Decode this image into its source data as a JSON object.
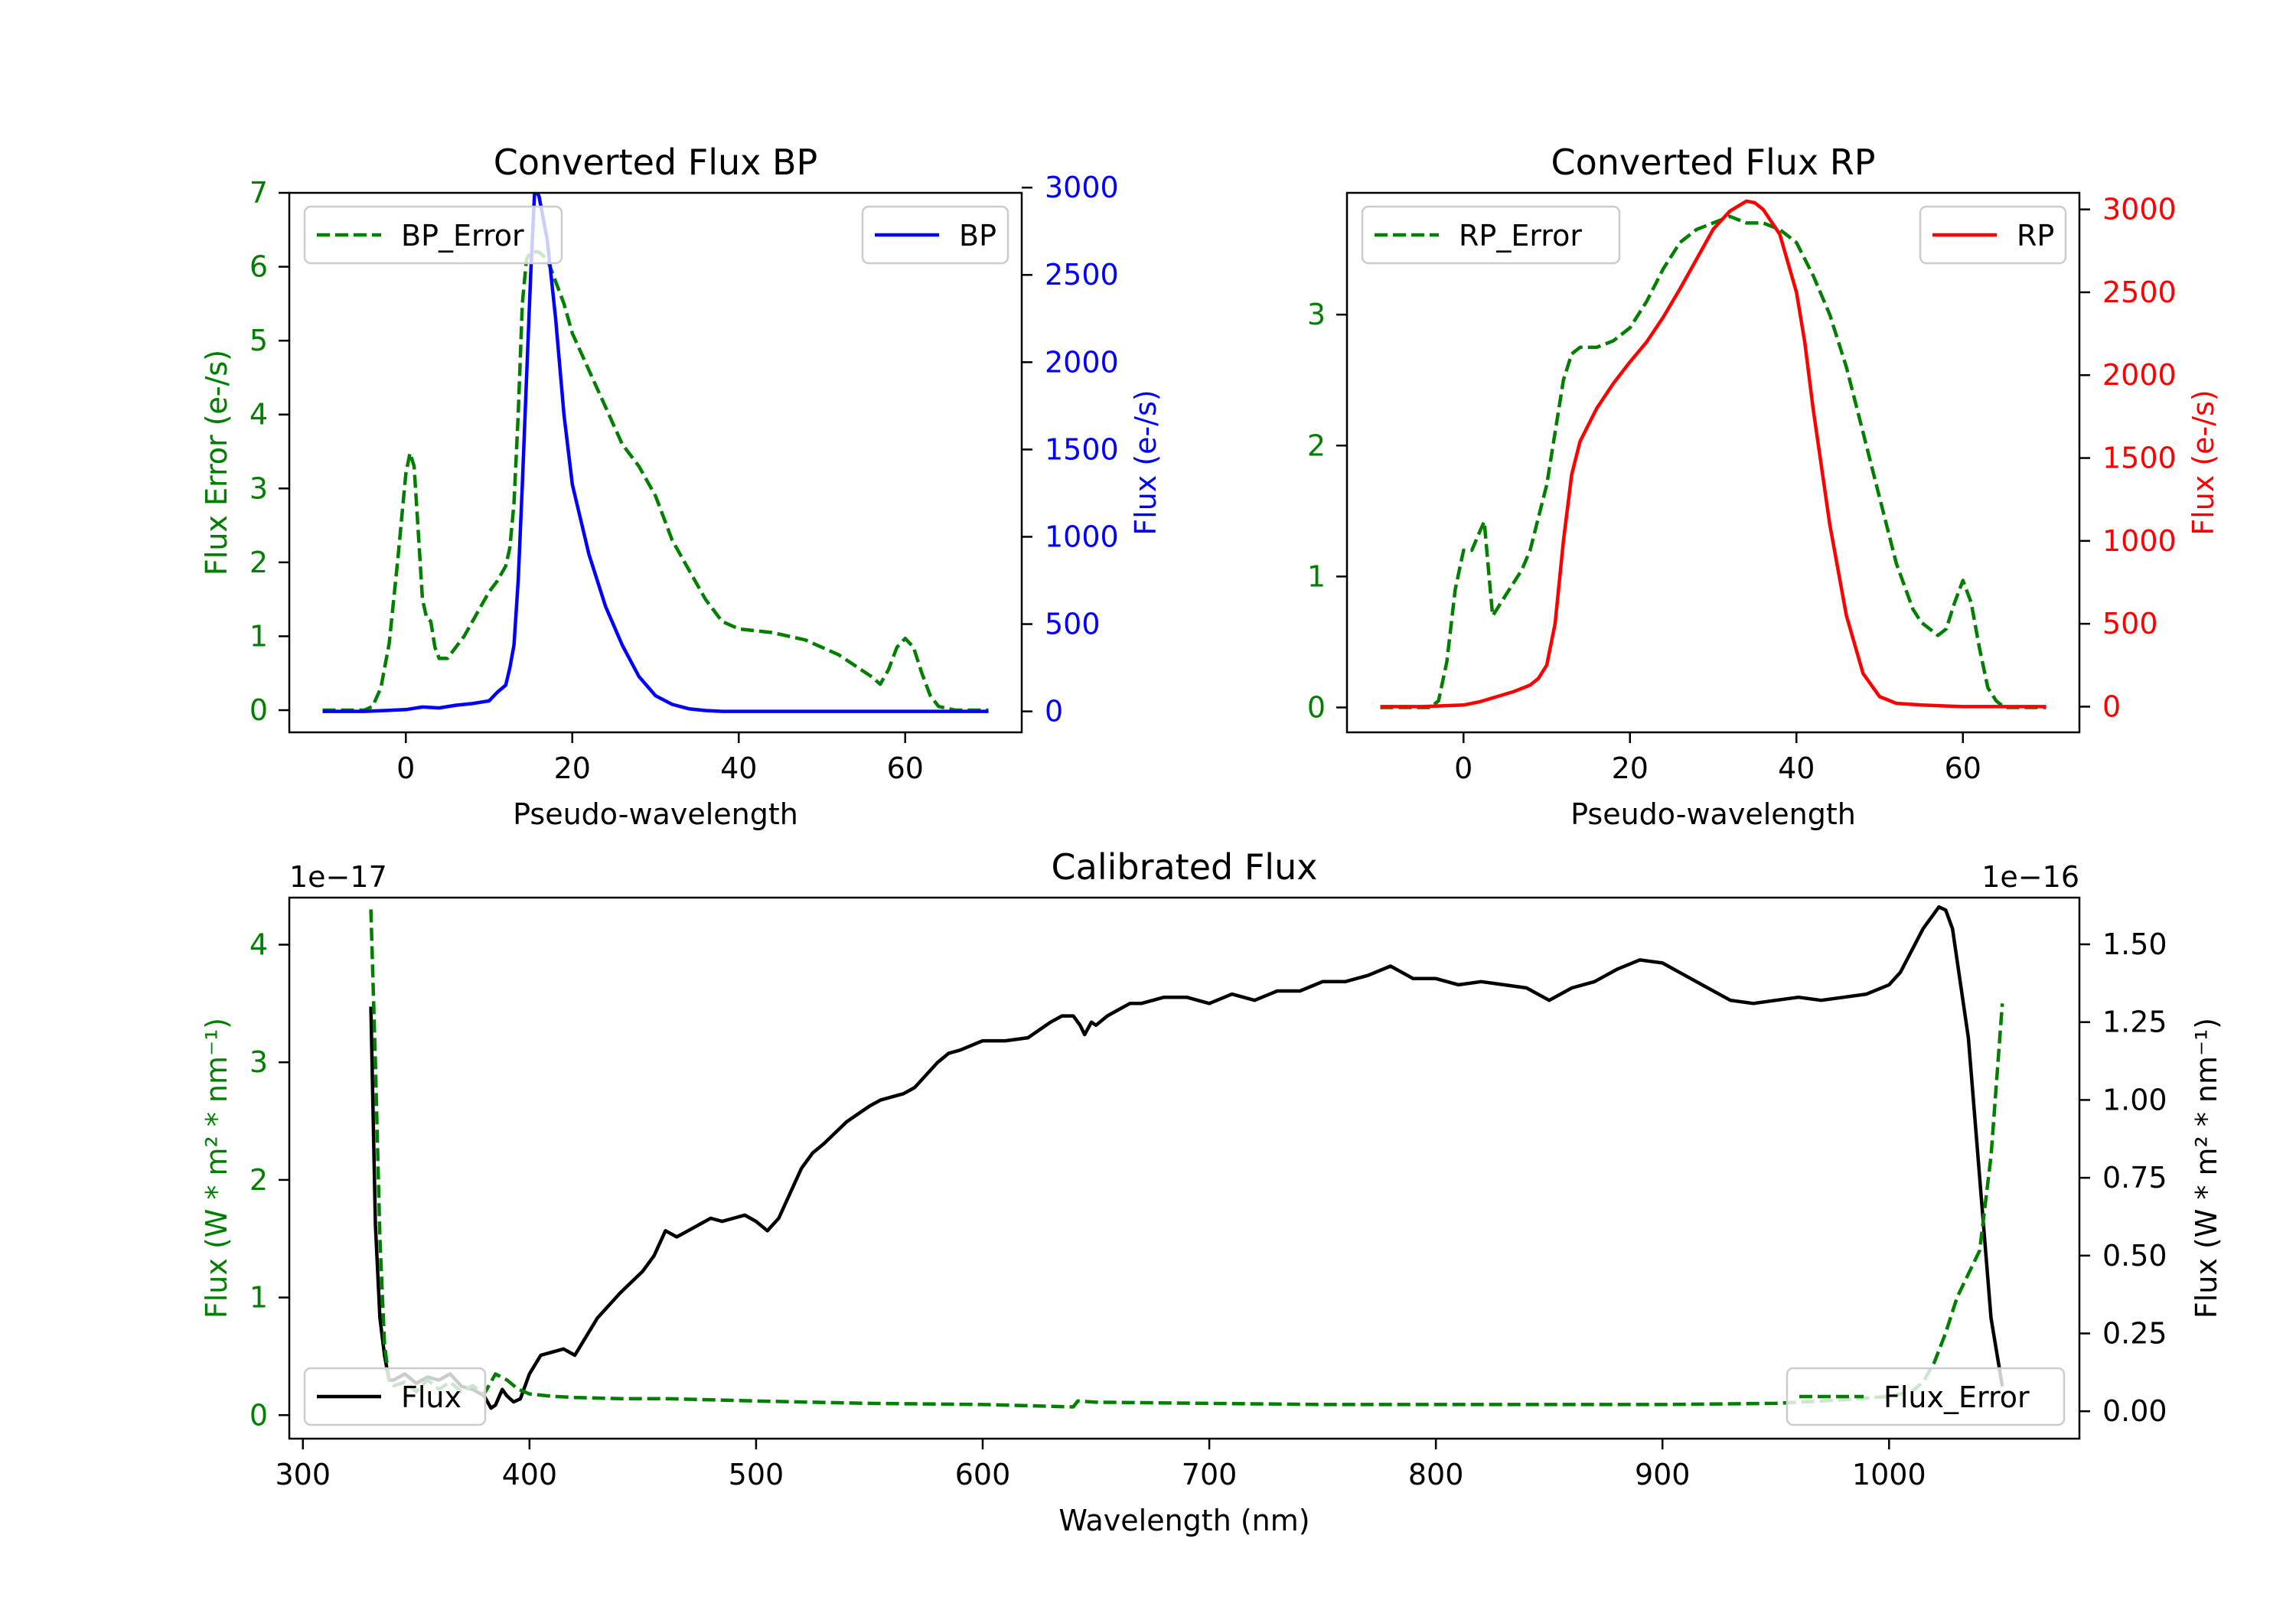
{
  "figure": {
    "background": "#ffffff",
    "colors": {
      "green": "#007f00",
      "blue": "#0000ff",
      "red": "#ff0000",
      "black": "#000000"
    }
  },
  "chart_data": [
    {
      "id": "bp",
      "type": "line",
      "title": "Converted Flux BP",
      "xlabel": "Pseudo-wavelength",
      "ylabel_left": "Flux Error (e-/s)",
      "ylabel_right": "Flux (e-/s)",
      "xlim": [
        -14,
        74
      ],
      "ylim_left": [
        -0.3,
        7
      ],
      "ylim_right": [
        -120,
        2970
      ],
      "xticks": [
        0,
        20,
        40,
        60
      ],
      "yticks_left": [
        0,
        1,
        2,
        3,
        4,
        5,
        6,
        7
      ],
      "yticks_right": [
        0,
        500,
        1000,
        1500,
        2000,
        2500,
        3000
      ],
      "legend_left": "BP_Error",
      "legend_right": "BP",
      "series": [
        {
          "name": "BP_Error",
          "axis": "left",
          "style": "dashed",
          "color": "#007f00",
          "x": [
            -10,
            -5,
            -4,
            -3,
            -2,
            -1,
            0,
            0.5,
            1,
            1.5,
            2,
            2.5,
            3,
            3.5,
            4,
            5,
            6,
            7,
            8,
            9,
            10,
            11,
            12,
            12.5,
            13,
            13.5,
            14,
            14.5,
            15,
            16,
            17,
            18,
            19,
            20,
            22,
            24,
            26,
            28,
            30,
            32,
            34,
            36,
            38,
            40,
            44,
            48,
            52,
            56,
            57,
            58,
            59,
            60,
            61,
            62,
            63,
            64,
            66,
            70
          ],
          "y": [
            0,
            0,
            0.05,
            0.3,
            0.9,
            2.0,
            3.2,
            3.48,
            3.3,
            2.4,
            1.5,
            1.25,
            1.2,
            0.85,
            0.7,
            0.7,
            0.85,
            1.0,
            1.2,
            1.4,
            1.6,
            1.75,
            1.95,
            2.2,
            2.8,
            4.0,
            5.5,
            6.1,
            6.2,
            6.2,
            6.1,
            5.8,
            5.5,
            5.1,
            4.6,
            4.1,
            3.6,
            3.3,
            2.9,
            2.3,
            1.9,
            1.5,
            1.2,
            1.1,
            1.05,
            0.95,
            0.75,
            0.45,
            0.35,
            0.55,
            0.85,
            0.97,
            0.85,
            0.5,
            0.2,
            0.05,
            0,
            0
          ]
        },
        {
          "name": "BP",
          "axis": "right",
          "style": "solid",
          "color": "#0000ff",
          "x": [
            -10,
            -5,
            0,
            2,
            4,
            6,
            8,
            10,
            11,
            12,
            12.5,
            13,
            13.5,
            14,
            14.5,
            15,
            15.5,
            16,
            17,
            18,
            19,
            20,
            22,
            24,
            26,
            28,
            30,
            32,
            34,
            36,
            38,
            40,
            44,
            50,
            55,
            60,
            65,
            70
          ],
          "y": [
            0,
            0,
            10,
            25,
            20,
            35,
            45,
            60,
            110,
            150,
            250,
            380,
            750,
            1300,
            1900,
            2500,
            3000,
            2950,
            2700,
            2250,
            1700,
            1300,
            900,
            600,
            380,
            200,
            90,
            40,
            15,
            5,
            0,
            0,
            0,
            0,
            0,
            0,
            0,
            0
          ]
        }
      ]
    },
    {
      "id": "rp",
      "type": "line",
      "title": "Converted Flux RP",
      "xlabel": "Pseudo-wavelength",
      "ylabel_left": "Flux Error (e-/s)",
      "ylabel_right": "Flux (e-/s)",
      "xlim": [
        -14,
        74
      ],
      "ylim_left": [
        -0.19,
        3.93
      ],
      "ylim_right": [
        -155,
        3100
      ],
      "xticks": [
        0,
        20,
        40,
        60
      ],
      "yticks_left": [
        0,
        1,
        2,
        3
      ],
      "yticks_right": [
        0,
        500,
        1000,
        1500,
        2000,
        2500,
        3000
      ],
      "legend_left": "RP_Error",
      "legend_right": "RP",
      "series": [
        {
          "name": "RP_Error",
          "axis": "left",
          "style": "dashed",
          "color": "#007f00",
          "x": [
            -10,
            -4,
            -3,
            -2,
            -1,
            0,
            1,
            2,
            2.5,
            3,
            3.5,
            4,
            5,
            6,
            7,
            8,
            9,
            10,
            11,
            12,
            13,
            14,
            15,
            16,
            18,
            20,
            22,
            24,
            26,
            28,
            30,
            32,
            34,
            36,
            38,
            40,
            42,
            44,
            46,
            48,
            50,
            52,
            54,
            55,
            56,
            57,
            58,
            59,
            60,
            61,
            62,
            63,
            64,
            65,
            70
          ],
          "y": [
            0,
            0,
            0.05,
            0.35,
            0.9,
            1.2,
            1.2,
            1.35,
            1.42,
            1.05,
            0.7,
            0.75,
            0.85,
            0.95,
            1.05,
            1.2,
            1.45,
            1.7,
            2.1,
            2.5,
            2.7,
            2.75,
            2.75,
            2.75,
            2.8,
            2.9,
            3.1,
            3.35,
            3.55,
            3.65,
            3.7,
            3.75,
            3.7,
            3.7,
            3.65,
            3.55,
            3.3,
            3.0,
            2.6,
            2.1,
            1.6,
            1.1,
            0.75,
            0.65,
            0.6,
            0.55,
            0.6,
            0.8,
            0.97,
            0.8,
            0.45,
            0.15,
            0.05,
            0,
            0
          ]
        },
        {
          "name": "RP",
          "axis": "right",
          "style": "solid",
          "color": "#ff0000",
          "x": [
            -10,
            -5,
            0,
            2,
            4,
            6,
            8,
            9,
            10,
            11,
            12,
            13,
            14,
            15,
            16,
            18,
            20,
            22,
            24,
            26,
            28,
            30,
            32,
            34,
            35,
            36,
            38,
            40,
            41,
            42,
            44,
            46,
            48,
            50,
            52,
            55,
            60,
            65,
            70
          ],
          "y": [
            0,
            0,
            10,
            30,
            60,
            90,
            130,
            170,
            250,
            500,
            1000,
            1400,
            1600,
            1700,
            1800,
            1950,
            2080,
            2200,
            2350,
            2520,
            2700,
            2880,
            2990,
            3050,
            3040,
            3000,
            2850,
            2500,
            2200,
            1800,
            1100,
            550,
            200,
            60,
            20,
            10,
            0,
            0,
            0
          ]
        }
      ]
    },
    {
      "id": "calibrated",
      "type": "line",
      "title": "Calibrated Flux",
      "xlabel": "Wavelength (nm)",
      "ylabel_left": "Flux (W * m² * nm⁻¹)",
      "ylabel_right": "Flux (W * m² * nm⁻¹)",
      "offset_left": "1e−17",
      "offset_right": "1e−16",
      "xlim": [
        294,
        1084
      ],
      "ylim_left": [
        -0.2,
        4.4
      ],
      "ylim_right": [
        -0.088,
        1.65
      ],
      "xticks": [
        300,
        400,
        500,
        600,
        700,
        800,
        900,
        1000
      ],
      "yticks_left": [
        0,
        1,
        2,
        3,
        4
      ],
      "yticks_right": [
        "0.00",
        "0.25",
        "0.50",
        "0.75",
        "1.00",
        "1.25",
        "1.50"
      ],
      "legend_left": "Flux",
      "legend_right": "Flux_Error",
      "series": [
        {
          "name": "Flux",
          "axis": "right",
          "style": "solid",
          "color": "#000000",
          "x": [
            330,
            332,
            334,
            336,
            338,
            340,
            345,
            350,
            355,
            360,
            365,
            370,
            375,
            380,
            383,
            385,
            388,
            390,
            393,
            396,
            400,
            405,
            410,
            415,
            420,
            425,
            430,
            440,
            450,
            455,
            460,
            465,
            470,
            475,
            480,
            485,
            490,
            495,
            500,
            505,
            510,
            515,
            520,
            525,
            530,
            540,
            550,
            555,
            560,
            565,
            570,
            575,
            580,
            585,
            590,
            600,
            605,
            610,
            620,
            630,
            635,
            640,
            643,
            645,
            648,
            650,
            655,
            660,
            665,
            670,
            680,
            690,
            700,
            710,
            720,
            730,
            740,
            750,
            760,
            770,
            780,
            790,
            800,
            810,
            820,
            830,
            840,
            850,
            860,
            870,
            880,
            890,
            900,
            910,
            920,
            930,
            940,
            950,
            960,
            970,
            980,
            990,
            1000,
            1005,
            1010,
            1015,
            1020,
            1022,
            1025,
            1028,
            1030,
            1035,
            1040,
            1045,
            1050
          ],
          "y": [
            1.3,
            0.6,
            0.3,
            0.18,
            0.1,
            0.1,
            0.12,
            0.09,
            0.11,
            0.1,
            0.12,
            0.08,
            0.07,
            0.05,
            0.01,
            0.02,
            0.07,
            0.05,
            0.03,
            0.04,
            0.12,
            0.18,
            0.19,
            0.2,
            0.18,
            0.24,
            0.3,
            0.38,
            0.45,
            0.5,
            0.58,
            0.56,
            0.58,
            0.6,
            0.62,
            0.61,
            0.62,
            0.63,
            0.61,
            0.58,
            0.62,
            0.7,
            0.78,
            0.83,
            0.86,
            0.93,
            0.98,
            1.0,
            1.01,
            1.02,
            1.04,
            1.08,
            1.12,
            1.15,
            1.16,
            1.19,
            1.19,
            1.19,
            1.2,
            1.25,
            1.27,
            1.27,
            1.24,
            1.21,
            1.25,
            1.24,
            1.27,
            1.29,
            1.31,
            1.31,
            1.33,
            1.33,
            1.31,
            1.34,
            1.32,
            1.35,
            1.35,
            1.38,
            1.38,
            1.4,
            1.43,
            1.39,
            1.39,
            1.37,
            1.38,
            1.37,
            1.36,
            1.32,
            1.36,
            1.38,
            1.42,
            1.45,
            1.44,
            1.4,
            1.36,
            1.32,
            1.31,
            1.32,
            1.33,
            1.32,
            1.33,
            1.34,
            1.37,
            1.41,
            1.48,
            1.55,
            1.6,
            1.62,
            1.61,
            1.55,
            1.45,
            1.2,
            0.75,
            0.3,
            0.08
          ]
        },
        {
          "name": "Flux_Error",
          "axis": "left",
          "style": "dashed",
          "color": "#007f00",
          "x": [
            330,
            332,
            334,
            336,
            338,
            340,
            345,
            350,
            355,
            360,
            365,
            370,
            375,
            380,
            385,
            390,
            395,
            400,
            410,
            420,
            440,
            460,
            500,
            550,
            600,
            640,
            642,
            650,
            700,
            750,
            800,
            850,
            900,
            950,
            980,
            1000,
            1010,
            1015,
            1020,
            1025,
            1030,
            1035,
            1040,
            1045,
            1050
          ],
          "y": [
            4.3,
            3.0,
            1.5,
            0.6,
            0.3,
            0.25,
            0.28,
            0.2,
            0.3,
            0.22,
            0.28,
            0.2,
            0.25,
            0.18,
            0.35,
            0.3,
            0.22,
            0.18,
            0.16,
            0.15,
            0.14,
            0.14,
            0.12,
            0.1,
            0.09,
            0.07,
            0.12,
            0.11,
            0.1,
            0.09,
            0.09,
            0.09,
            0.09,
            0.1,
            0.13,
            0.16,
            0.2,
            0.28,
            0.45,
            0.7,
            1.0,
            1.2,
            1.4,
            2.2,
            3.5
          ]
        }
      ]
    }
  ]
}
